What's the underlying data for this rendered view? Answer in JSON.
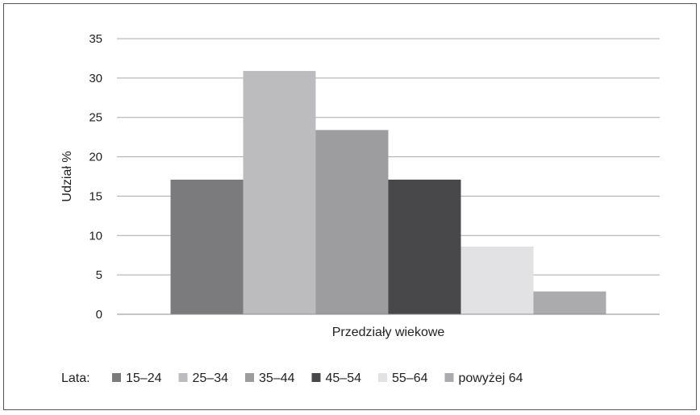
{
  "chart_data": {
    "type": "bar",
    "title": "",
    "xlabel": "Przedziały wiekowe",
    "ylabel": "Udział %",
    "ylim": [
      0,
      35
    ],
    "yticks": [
      0,
      5,
      10,
      15,
      20,
      25,
      30,
      35
    ],
    "grid": true,
    "legend_position": "bottom",
    "legend_title": "Lata:",
    "series": [
      {
        "name": "15–24",
        "value": 17.1,
        "color": "#7b7b7d"
      },
      {
        "name": "25–34",
        "value": 30.9,
        "color": "#bcbcbe"
      },
      {
        "name": "35–44",
        "value": 23.4,
        "color": "#9d9d9f"
      },
      {
        "name": "45–54",
        "value": 17.1,
        "color": "#48484a"
      },
      {
        "name": "55–64",
        "value": 8.6,
        "color": "#e2e2e4"
      },
      {
        "name": "powyżej 64",
        "value": 2.9,
        "color": "#ababad"
      }
    ]
  }
}
